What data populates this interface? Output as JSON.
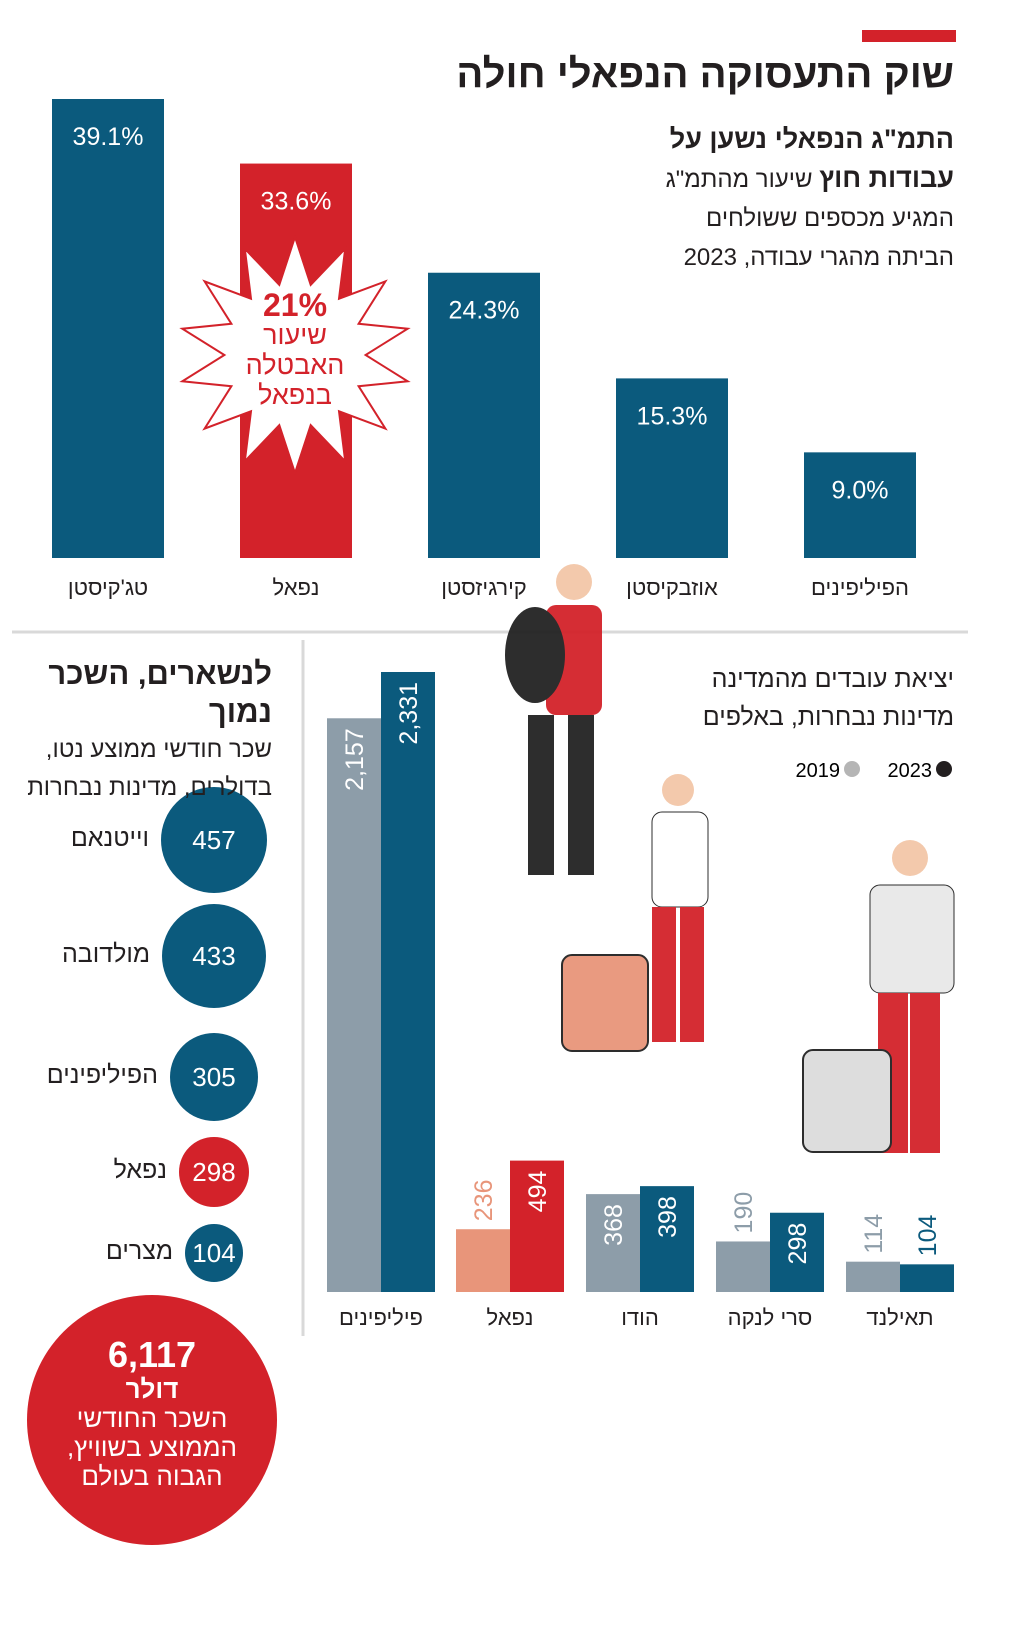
{
  "header": {
    "title": "שוק התעסוקה הנפאלי חולה",
    "accent_color": "#d3222a"
  },
  "remittances": {
    "subtitle_bold_line1": "התמ\"ג הנפאלי נשען על",
    "subtitle_bold_line2": "עבודות חוץ",
    "subtitle_light_line2": " שיעור מהתמ\"ג",
    "subtitle_line3": "המגיע מכספים ששולחים",
    "subtitle_line4": "הביתה מהגרי עבודה, 2023",
    "callout": {
      "value": "21%",
      "line1": "שיעור",
      "line2": "האבטלה",
      "line3": "בנפאל"
    }
  },
  "wages": {
    "title": "לנשארים, השכר נמוך",
    "subtitle_line1": "שכר חודשי ממוצע נטו,",
    "subtitle_line2": "בדולרים, מדינות נבחרות",
    "highlight": {
      "value": "6,117",
      "unit": "דולר",
      "line1": "השכר החודשי",
      "line2": "הממוצע בשוויץ,",
      "line3": "הגבוה בעולם"
    }
  },
  "emigration": {
    "title_line1": "יציאת עובדים מהמדינה",
    "title_line2": "מדינות נבחרות, באלפים"
  },
  "colors": {
    "blue": "#0b5a7d",
    "red": "#d3222a",
    "gray": "#8d9da9",
    "salmon": "#e8957a"
  },
  "chart_data": [
    {
      "type": "bar",
      "title": "התמ\"ג הנפאלי נשען על עבודות חוץ",
      "categories": [
        "טג'קיסטן",
        "נפאל",
        "קירגיזסטן",
        "אוזבקיסטן",
        "הפיליפינים"
      ],
      "values": [
        39.1,
        33.6,
        24.3,
        15.3,
        9.0
      ],
      "labels": [
        "39.1%",
        "33.6%",
        "24.3%",
        "15.3%",
        "9.0%"
      ],
      "highlight": "נפאל",
      "ylim": [
        0,
        40
      ],
      "grid": false
    },
    {
      "type": "bar",
      "title": "יציאת עובדים מהמדינה",
      "categories": [
        "פיליפינים",
        "נפאל",
        "הודו",
        "סרי לנקה",
        "תאילנד"
      ],
      "series": [
        {
          "name": "2019",
          "values": [
            2157,
            236,
            368,
            190,
            114
          ],
          "labels": [
            "2,157",
            "236",
            "368",
            "190",
            "114"
          ]
        },
        {
          "name": "2023",
          "values": [
            2331,
            494,
            398,
            298,
            104
          ],
          "labels": [
            "2,331",
            "494",
            "398",
            "298",
            "104"
          ]
        }
      ],
      "legend": "top-right",
      "ylim": [
        0,
        2400
      ],
      "grid": false
    },
    {
      "type": "bubble",
      "title": "לנשארים, השכר נמוך",
      "categories": [
        "וייטנאם",
        "מולדובה",
        "הפיליפינים",
        "נפאל",
        "מצרים"
      ],
      "values": [
        457,
        433,
        305,
        298,
        104
      ],
      "highlight": "נפאל"
    }
  ]
}
